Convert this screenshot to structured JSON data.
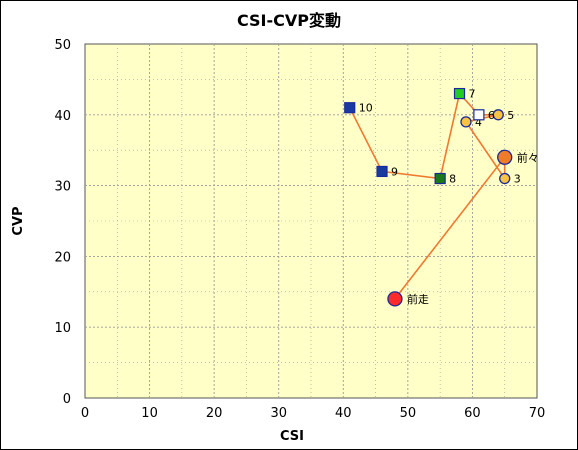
{
  "chart_data": {
    "type": "scatter",
    "title": "CSI-CVP変動",
    "xlabel": "CSI",
    "ylabel": "CVP",
    "xlim": [
      0,
      70
    ],
    "ylim": [
      0,
      50
    ],
    "xticks": [
      "0",
      "10",
      "20",
      "30",
      "40",
      "50",
      "60",
      "70"
    ],
    "yticks": [
      "0",
      "10",
      "20",
      "30",
      "40",
      "50"
    ],
    "grid": true,
    "connection_order": [
      "10",
      "9",
      "8",
      "7",
      "6",
      "5",
      "4",
      "3",
      "前々",
      "前走"
    ],
    "points": [
      {
        "label": "前走",
        "x": 48,
        "y": 14,
        "marker": "circle",
        "fill": "#ff2a2a"
      },
      {
        "label": "前々",
        "x": 65,
        "y": 34,
        "marker": "circle",
        "fill": "#f07c28"
      },
      {
        "label": "3",
        "x": 65,
        "y": 31,
        "marker": "circle",
        "fill": "#f6c342"
      },
      {
        "label": "4",
        "x": 59,
        "y": 39,
        "marker": "circle",
        "fill": "#f6c342"
      },
      {
        "label": "5",
        "x": 64,
        "y": 40,
        "marker": "circle",
        "fill": "#f6c342"
      },
      {
        "label": "6",
        "x": 61,
        "y": 40,
        "marker": "square",
        "fill": "#ffffff"
      },
      {
        "label": "7",
        "x": 58,
        "y": 43,
        "marker": "square",
        "fill": "#22cc22"
      },
      {
        "label": "8",
        "x": 55,
        "y": 31,
        "marker": "square",
        "fill": "#1a7a1a"
      },
      {
        "label": "9",
        "x": 46,
        "y": 32,
        "marker": "square",
        "fill": "#1a3aa0"
      },
      {
        "label": "10",
        "x": 41,
        "y": 41,
        "marker": "square",
        "fill": "#1a3aa0"
      }
    ]
  },
  "colors": {
    "plot_bg": "#ffffc8",
    "line": "#f07830",
    "marker_stroke": "#1a2a9a",
    "grid": "#9a9a9a"
  }
}
